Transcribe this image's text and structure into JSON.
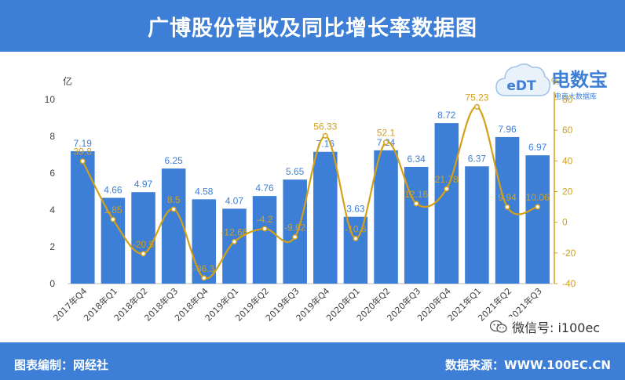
{
  "header": {
    "title": "广博股份营收及同比增长率数据图"
  },
  "logo": {
    "brand": "电数宝",
    "sub": "电商大数据库",
    "badge": "eDT"
  },
  "watermark": {
    "text": "微信号: i100ec"
  },
  "footer": {
    "left": "图表编制：网经社",
    "right": "数据来源：WWW.100EC.CN"
  },
  "colors": {
    "bar": "#3d7fd6",
    "line": "#d4a017",
    "header": "#3d7fd6"
  },
  "chart_data": {
    "type": "bar",
    "left_axis_label": "亿",
    "right_axis_label": "%",
    "categories": [
      "2017年Q4",
      "2018年Q1",
      "2018年Q2",
      "2018年Q3",
      "2018年Q4",
      "2019年Q1",
      "2019年Q2",
      "2019年Q3",
      "2019年Q4",
      "2020年Q1",
      "2020年Q2",
      "2020年Q3",
      "2020年Q4",
      "2021年Q1",
      "2021年Q2",
      "2021年Q3"
    ],
    "series": [
      {
        "type": "bar",
        "axis": "left",
        "values": [
          7.19,
          4.66,
          4.97,
          6.25,
          4.58,
          4.07,
          4.76,
          5.65,
          7.16,
          3.63,
          7.24,
          6.34,
          8.72,
          6.37,
          7.96,
          6.97
        ],
        "labels": [
          "7.19",
          "4.66",
          "4.97",
          "6.25",
          "4.58",
          "4.07",
          "4.76",
          "5.65",
          "7.16",
          "3.63",
          "7.24",
          "6.34",
          "8.72",
          "6.37",
          "7.96",
          "6.97"
        ]
      },
      {
        "type": "line",
        "axis": "right",
        "values": [
          39.8,
          1.85,
          -20.5,
          8.5,
          -36.3,
          -12.66,
          -4.2,
          -9.62,
          56.33,
          -10.6,
          52.1,
          12.16,
          21.78,
          75.23,
          9.94,
          10.06
        ],
        "labels": [
          "39.8",
          "1.85",
          "-20.5",
          "8.5",
          "-36.3",
          "-12.66",
          "-4.2",
          "-9.62",
          "56.33",
          "-10.6",
          "52.1",
          "12.16",
          "21.78",
          "75.23",
          "9.94",
          "10.06"
        ]
      }
    ],
    "left_ylim": [
      0,
      10
    ],
    "left_ticks": [
      "0",
      "2",
      "4",
      "6",
      "8",
      "10"
    ],
    "right_ylim": [
      -40,
      80
    ],
    "right_ticks": [
      "-40",
      "-20",
      "0",
      "20",
      "40",
      "60",
      "80"
    ]
  }
}
